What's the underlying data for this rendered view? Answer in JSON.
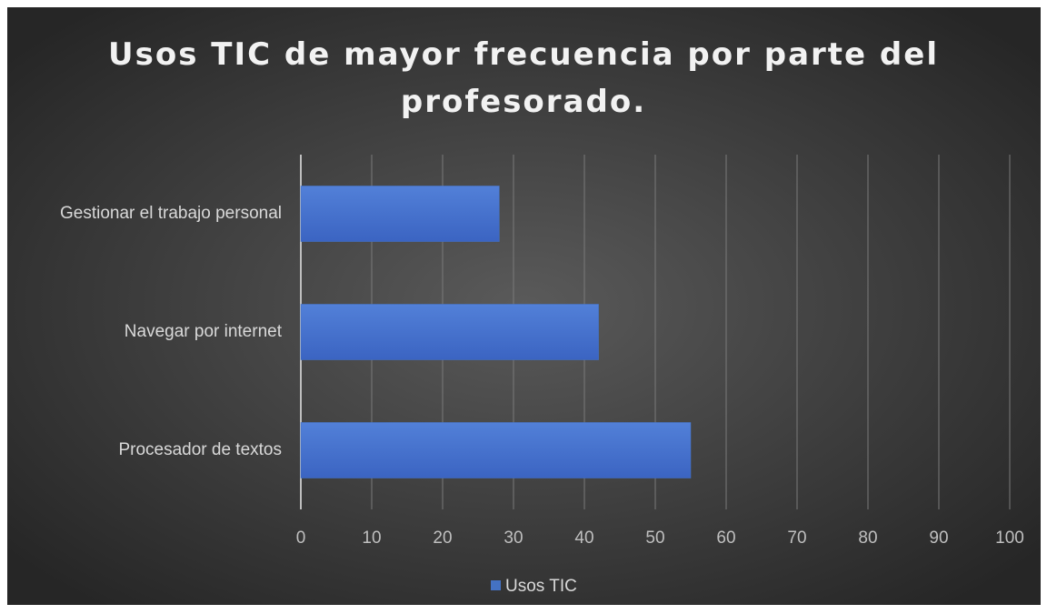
{
  "chart_data": {
    "type": "bar",
    "orientation": "horizontal",
    "title": "Usos TIC de mayor frecuencia por parte del profesorado.",
    "categories": [
      "Gestionar el trabajo personal",
      "Navegar por internet",
      "Procesador de textos"
    ],
    "series": [
      {
        "name": "Usos TIC",
        "color": "#4472c4",
        "values": [
          28,
          42,
          55
        ]
      }
    ],
    "xlim": [
      0,
      100
    ],
    "xticks": [
      0,
      10,
      20,
      30,
      40,
      50,
      60,
      70,
      80,
      90,
      100
    ],
    "grid": true,
    "legend": "bottom"
  }
}
